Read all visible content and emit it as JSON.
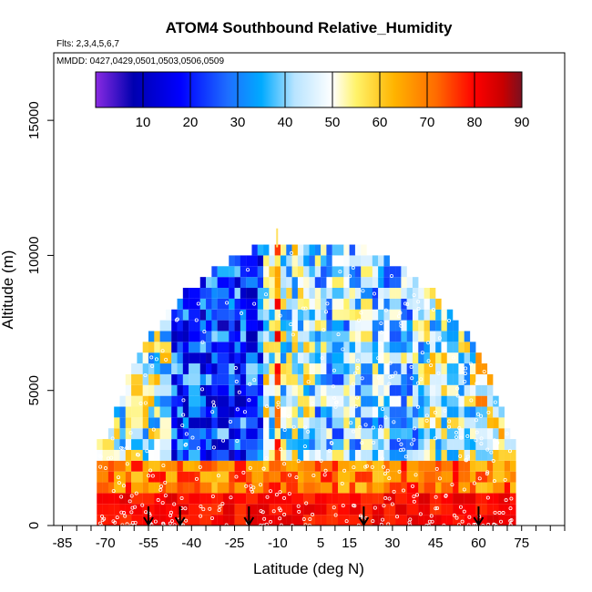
{
  "chart_data": {
    "type": "heatmap",
    "title": "ATOM4 Southbound Relative_Humidity",
    "subtitle_flights": "Flts: 2,3,4,5,6,7",
    "subtitle_dates": "MMDD: 0427,0429,0501,0503,0506,0509",
    "xlabel": "Latitude (deg N)",
    "ylabel": "Altitude (m)",
    "xlim": [
      -88,
      90
    ],
    "ylim": [
      0,
      17500
    ],
    "x_ticks": [
      -85,
      -70,
      -55,
      -40,
      -25,
      -10,
      5,
      15,
      30,
      45,
      60,
      75
    ],
    "y_ticks": [
      0,
      5000,
      10000,
      15000
    ],
    "colorbar": {
      "range": [
        0,
        90
      ],
      "ticks": [
        10,
        20,
        30,
        40,
        50,
        60,
        70,
        80,
        90
      ],
      "stops": [
        {
          "v": 0,
          "c": "#8a2be2"
        },
        {
          "v": 8,
          "c": "#0000b0"
        },
        {
          "v": 18,
          "c": "#0000ff"
        },
        {
          "v": 28,
          "c": "#1e6fff"
        },
        {
          "v": 35,
          "c": "#00aaff"
        },
        {
          "v": 42,
          "c": "#b8e4ff"
        },
        {
          "v": 50,
          "c": "#ffffff"
        },
        {
          "v": 55,
          "c": "#fff36a"
        },
        {
          "v": 63,
          "c": "#ffb400"
        },
        {
          "v": 72,
          "c": "#ff6a00"
        },
        {
          "v": 80,
          "c": "#ff0000"
        },
        {
          "v": 86,
          "c": "#c80000"
        },
        {
          "v": 90,
          "c": "#7a1020"
        }
      ]
    },
    "arrow_latitudes": [
      -55,
      -44,
      -20,
      20,
      60
    ]
  }
}
